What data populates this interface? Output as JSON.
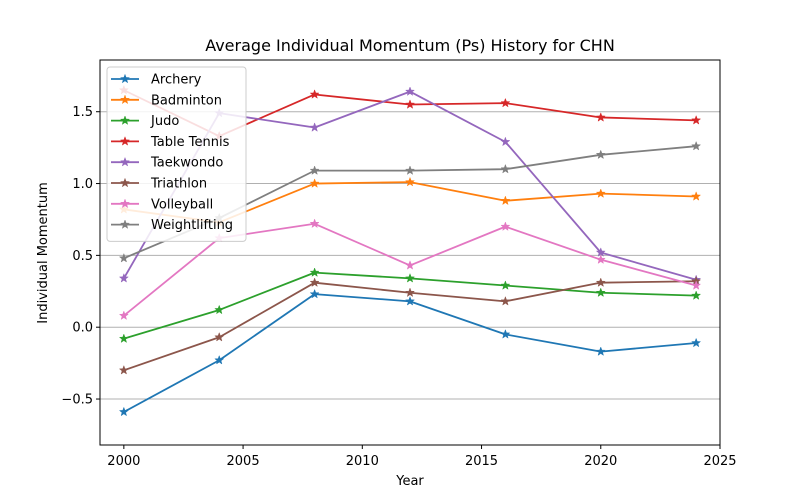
{
  "chart_data": {
    "type": "line",
    "title": "Average Individual Momentum (Ps) History for CHN",
    "xlabel": "Year",
    "ylabel": "Individual Momentum",
    "x": [
      2000,
      2004,
      2008,
      2012,
      2016,
      2020,
      2024
    ],
    "xlim": [
      1999,
      2025
    ],
    "ylim": [
      -0.82,
      1.86
    ],
    "x_ticks": [
      2000,
      2005,
      2010,
      2015,
      2020,
      2025
    ],
    "y_ticks": [
      -0.5,
      0.0,
      0.5,
      1.0,
      1.5
    ],
    "x_tick_labels": [
      "2000",
      "2005",
      "2010",
      "2015",
      "2020",
      "2025"
    ],
    "y_tick_labels": [
      "−0.5",
      "0.0",
      "0.5",
      "1.0",
      "1.5"
    ],
    "grid": "horizontal",
    "legend_position": "upper-left",
    "marker": "star",
    "series": [
      {
        "name": "Archery",
        "color": "#1f77b4",
        "values": [
          -0.59,
          -0.23,
          0.23,
          0.18,
          -0.05,
          -0.17,
          -0.11
        ]
      },
      {
        "name": "Badminton",
        "color": "#ff7f0e",
        "values": [
          0.82,
          0.73,
          1.0,
          1.01,
          0.88,
          0.93,
          0.91
        ]
      },
      {
        "name": "Judo",
        "color": "#2ca02c",
        "values": [
          -0.08,
          0.12,
          0.38,
          0.34,
          0.29,
          0.24,
          0.22
        ]
      },
      {
        "name": "Table Tennis",
        "color": "#d62728",
        "values": [
          1.65,
          1.33,
          1.62,
          1.55,
          1.56,
          1.46,
          1.44
        ]
      },
      {
        "name": "Taekwondo",
        "color": "#9467bd",
        "values": [
          0.34,
          1.49,
          1.39,
          1.64,
          1.29,
          0.52,
          0.33
        ]
      },
      {
        "name": "Triathlon",
        "color": "#8c564b",
        "values": [
          -0.3,
          -0.07,
          0.31,
          0.24,
          0.18,
          0.31,
          0.32
        ]
      },
      {
        "name": "Volleyball",
        "color": "#e377c2",
        "values": [
          0.08,
          0.62,
          0.72,
          0.43,
          0.7,
          0.47,
          0.29
        ]
      },
      {
        "name": "Weightlifting",
        "color": "#7f7f7f",
        "values": [
          0.48,
          0.76,
          1.09,
          1.09,
          1.1,
          1.2,
          1.26
        ]
      }
    ]
  }
}
